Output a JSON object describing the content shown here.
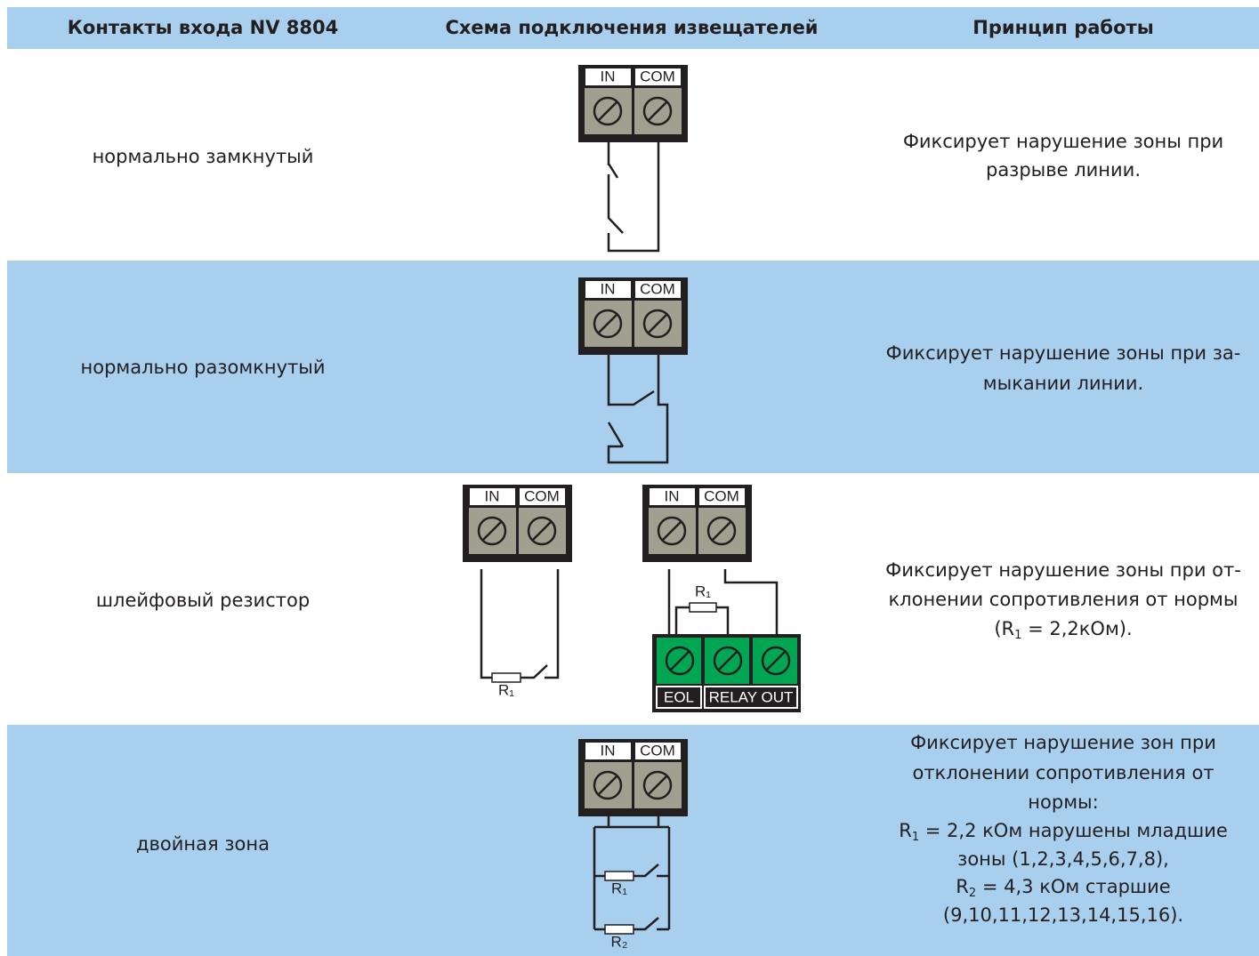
{
  "header": {
    "columns": [
      "Контакты входа NV 8804",
      "Схема подключения извещателей",
      "Принцип работы"
    ]
  },
  "terminal_labels": {
    "in": "IN",
    "com": "COM",
    "eol": "EOL",
    "relay_out": "RELAY OUT",
    "r1": "R₁",
    "r2": "R₂"
  },
  "rows": [
    {
      "contact": "нормально замкнутый",
      "description": [
        [
          "Фиксирует нарушение зоны при"
        ],
        [
          "разрыве линии."
        ]
      ]
    },
    {
      "contact": "нормально разомкнутый",
      "description": [
        [
          "Фиксирует нарушение зоны при за-"
        ],
        [
          "мыкании линии."
        ]
      ]
    },
    {
      "contact": "шлейфовый резистор",
      "description": [
        [
          "Фиксирует нарушение зоны при от-"
        ],
        [
          "клонении сопротивления от нормы"
        ],
        [
          "(R",
          {
            "sub": "1"
          },
          " = 2,2кОм)."
        ]
      ]
    },
    {
      "contact": "двойная зона",
      "description": [
        [
          "Фиксирует нарушение зон при"
        ],
        [
          "отклонении сопротивления от"
        ],
        [
          "нормы:"
        ],
        [
          "R",
          {
            "sub": "1"
          },
          " = 2,2 кОм нарушены младшие"
        ],
        [
          "зоны (1,2,3,4,5,6,7,8),"
        ],
        [
          "R",
          {
            "sub": "2"
          },
          " = 4,3 кОм старшие"
        ],
        [
          "(9,10,11,12,13,14,15,16)."
        ]
      ]
    }
  ]
}
